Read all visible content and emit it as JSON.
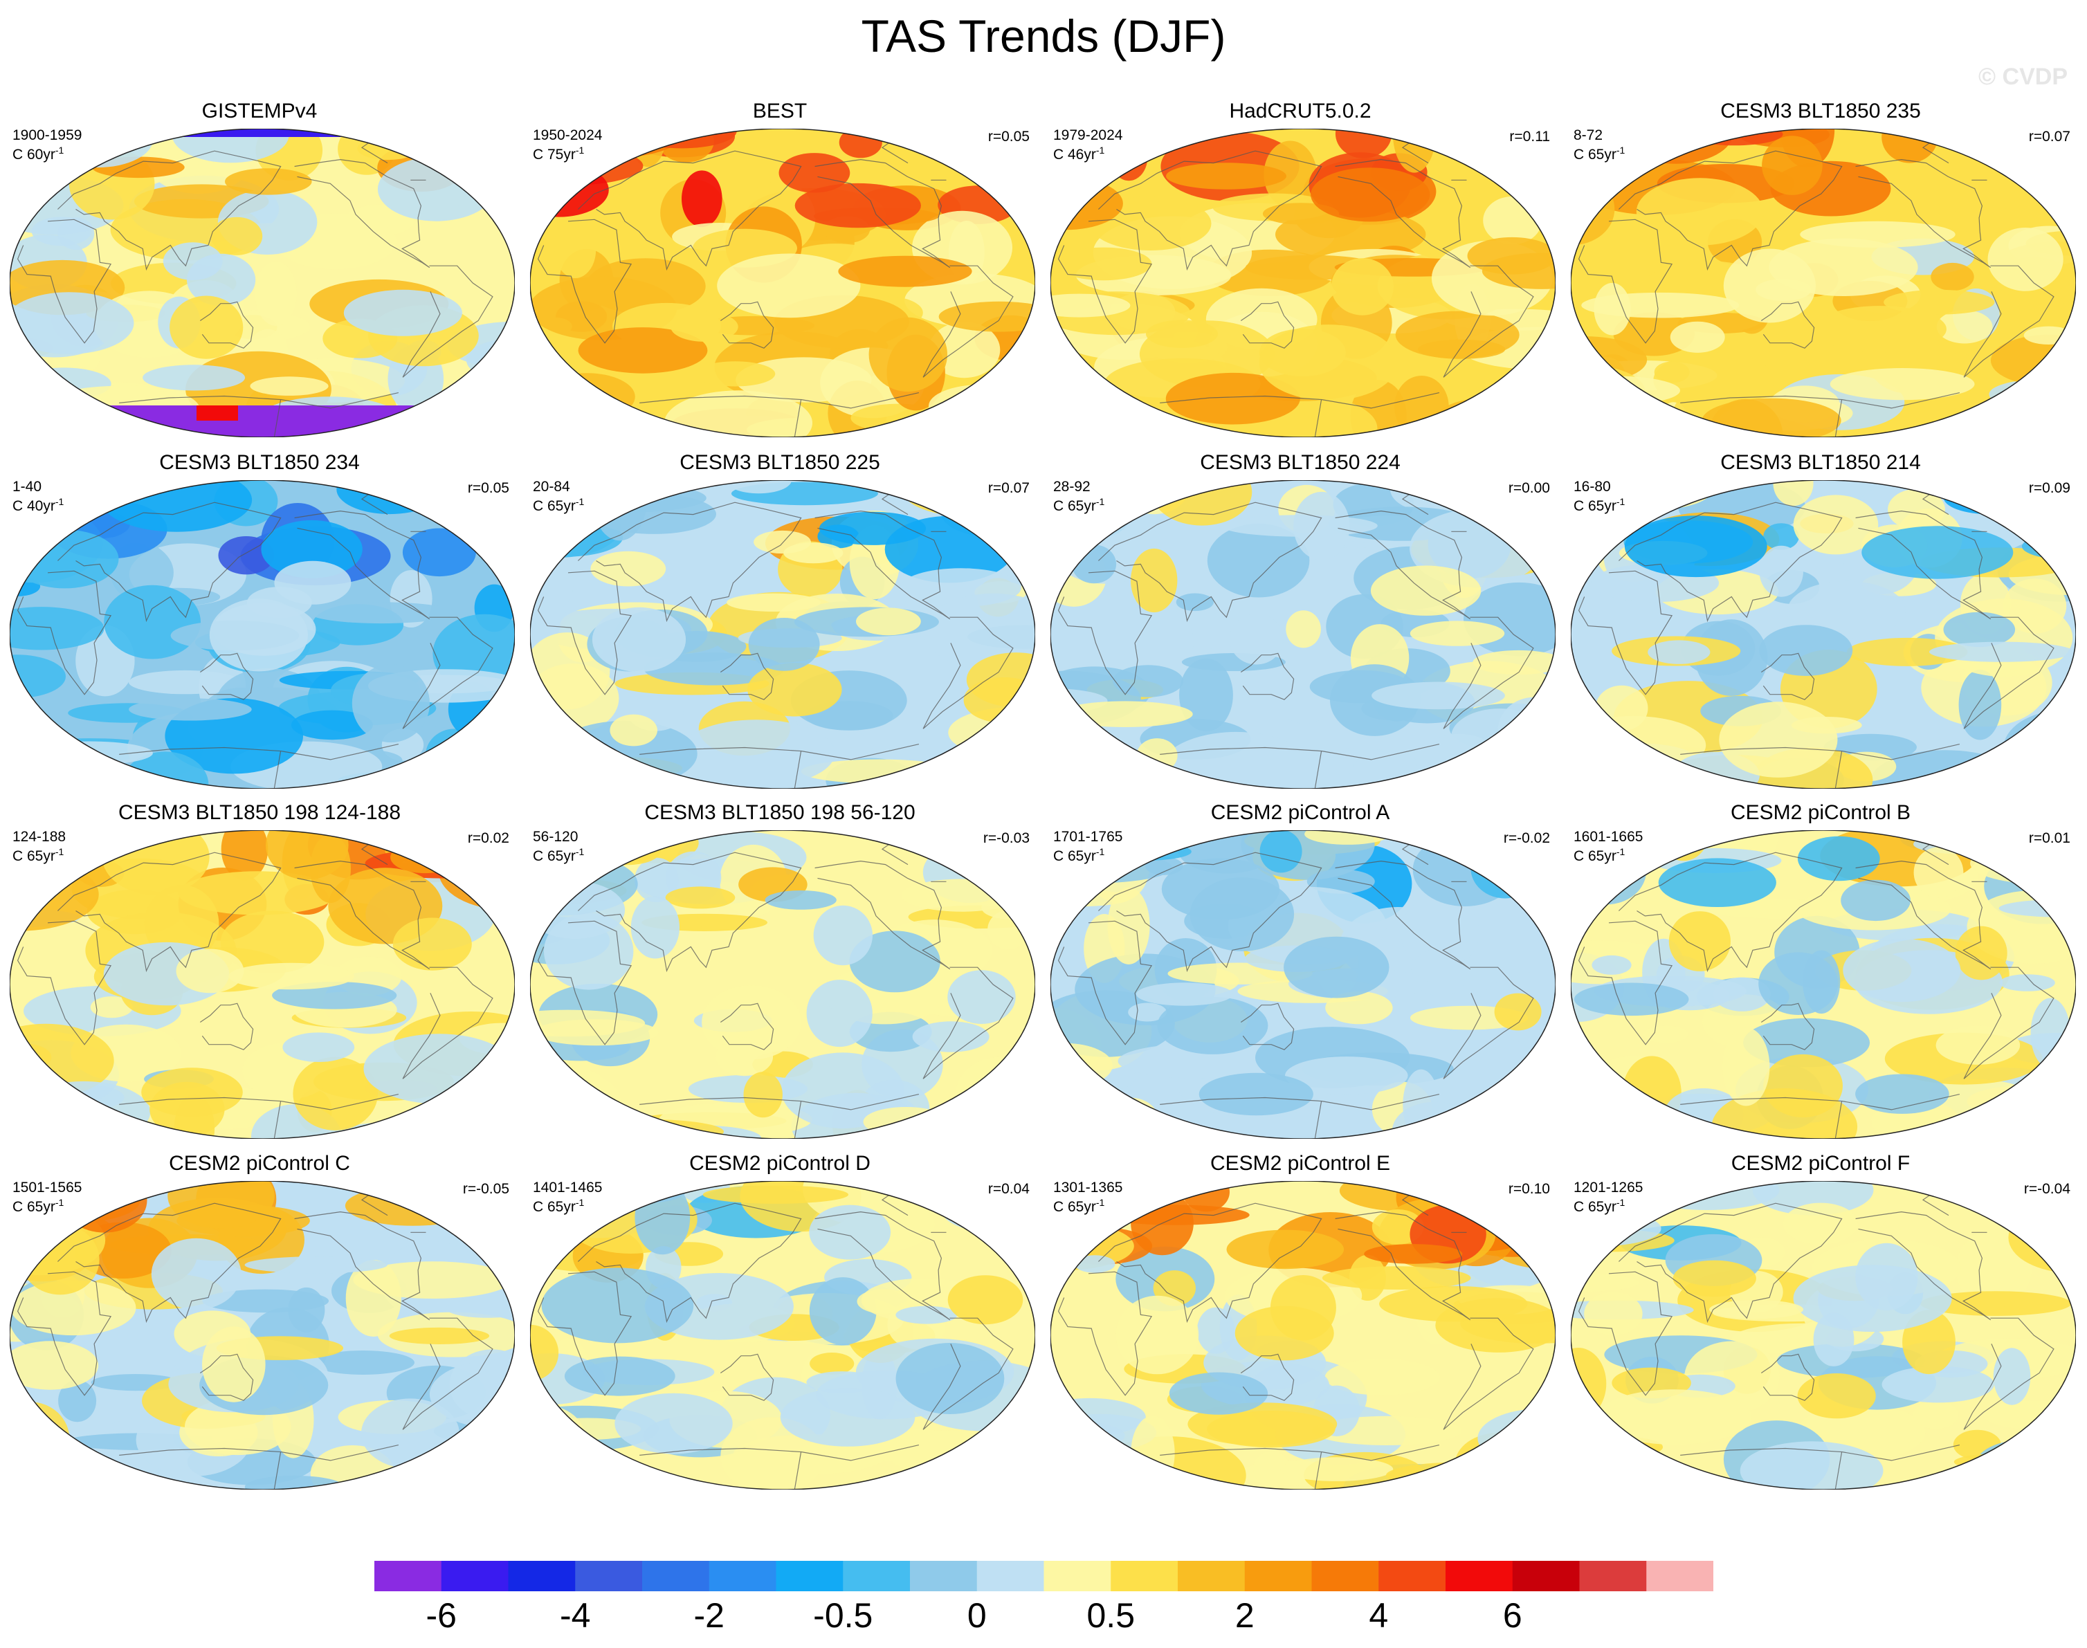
{
  "title": "TAS Trends (DJF)",
  "watermark": "© CVDP",
  "chart_data": {
    "type": "heatmap",
    "description_units": "°C per period (trend)",
    "projection": "Robinson, Pacific-centered",
    "colorbar": {
      "colors": [
        "#8a2be2",
        "#3a1bf0",
        "#1428e6",
        "#3a5ae0",
        "#2e74ea",
        "#2a8ef2",
        "#12aaf5",
        "#45bdf0",
        "#8fcaea",
        "#bfe0f3",
        "#fdf7a3",
        "#fde04a",
        "#f9be24",
        "#f89c0e",
        "#f67a08",
        "#f34a12",
        "#f20a0a",
        "#c8000a",
        "#dc3c3c",
        "#f9b3b3"
      ],
      "tick_labels": [
        "-6",
        "-4",
        "-2",
        "-0.5",
        "0",
        "0.5",
        "2",
        "4",
        "6"
      ]
    },
    "panels": [
      {
        "title": "GISTEMPv4",
        "period": "1900-1959",
        "units": "C 60yr",
        "units_sup": "-1",
        "r": "",
        "mean": 0.5,
        "seed": 3,
        "arctic": "gap",
        "antarctic": "gap"
      },
      {
        "title": "BEST",
        "period": "1950-2024",
        "units": "C 75yr",
        "units_sup": "-1",
        "r": "r=0.05",
        "mean": 1.4,
        "seed": 7,
        "arctic": "hot"
      },
      {
        "title": "HadCRUT5.0.2",
        "period": "1979-2024",
        "units": "C 46yr",
        "units_sup": "-1",
        "r": "r=0.11",
        "mean": 1.3,
        "seed": 11,
        "arctic": "hot"
      },
      {
        "title": "CESM3 BLT1850 235",
        "period": "8-72",
        "units": "C 65yr",
        "units_sup": "-1",
        "r": "r=0.07",
        "mean": 0.8,
        "seed": 13,
        "arctic": "hot"
      },
      {
        "title": "CESM3 BLT1850 234",
        "period": "1-40",
        "units": "C 40yr",
        "units_sup": "-1",
        "r": "r=0.05",
        "mean": -1.3,
        "seed": 17,
        "arctic": "cold"
      },
      {
        "title": "CESM3 BLT1850 225",
        "period": "20-84",
        "units": "C 65yr",
        "units_sup": "-1",
        "r": "r=0.07",
        "mean": -0.1,
        "seed": 19,
        "arctic": "mixed"
      },
      {
        "title": "CESM3 BLT1850 224",
        "period": "28-92",
        "units": "C 65yr",
        "units_sup": "-1",
        "r": "r=0.00",
        "mean": -0.3,
        "seed": 23,
        "arctic": "mixed"
      },
      {
        "title": "CESM3 BLT1850 214",
        "period": "16-80",
        "units": "C 65yr",
        "units_sup": "-1",
        "r": "r=0.09",
        "mean": -0.2,
        "seed": 29,
        "arctic": "mixed"
      },
      {
        "title": "CESM3 BLT1850 198 124-188",
        "period": "124-188",
        "units": "C 65yr",
        "units_sup": "-1",
        "r": "r=0.02",
        "mean": 0.2,
        "seed": 31,
        "arctic": "hot"
      },
      {
        "title": "CESM3 BLT1850 198 56-120",
        "period": "56-120",
        "units": "C 65yr",
        "units_sup": "-1",
        "r": "r=-0.03",
        "mean": 0.0,
        "seed": 37,
        "arctic": "mixed"
      },
      {
        "title": "CESM2 piControl A",
        "period": "1701-1765",
        "units": "C 65yr",
        "units_sup": "-1",
        "r": "r=-0.02",
        "mean": -0.3,
        "seed": 41,
        "arctic": "mixed"
      },
      {
        "title": "CESM2 piControl B",
        "period": "1601-1665",
        "units": "C 65yr",
        "units_sup": "-1",
        "r": "r=0.01",
        "mean": 0.1,
        "seed": 43,
        "arctic": "mixed"
      },
      {
        "title": "CESM2 piControl C",
        "period": "1501-1565",
        "units": "C 65yr",
        "units_sup": "-1",
        "r": "r=-0.05",
        "mean": -0.1,
        "seed": 47,
        "arctic": "hot"
      },
      {
        "title": "CESM2 piControl D",
        "period": "1401-1465",
        "units": "C 65yr",
        "units_sup": "-1",
        "r": "r=0.04",
        "mean": 0.1,
        "seed": 53,
        "arctic": "mixed"
      },
      {
        "title": "CESM2 piControl E",
        "period": "1301-1365",
        "units": "C 65yr",
        "units_sup": "-1",
        "r": "r=0.10",
        "mean": 0.3,
        "seed": 59,
        "arctic": "hot"
      },
      {
        "title": "CESM2 piControl F",
        "period": "1201-1265",
        "units": "C 65yr",
        "units_sup": "-1",
        "r": "r=-0.04",
        "mean": 0.0,
        "seed": 61,
        "arctic": "mixed"
      }
    ]
  }
}
